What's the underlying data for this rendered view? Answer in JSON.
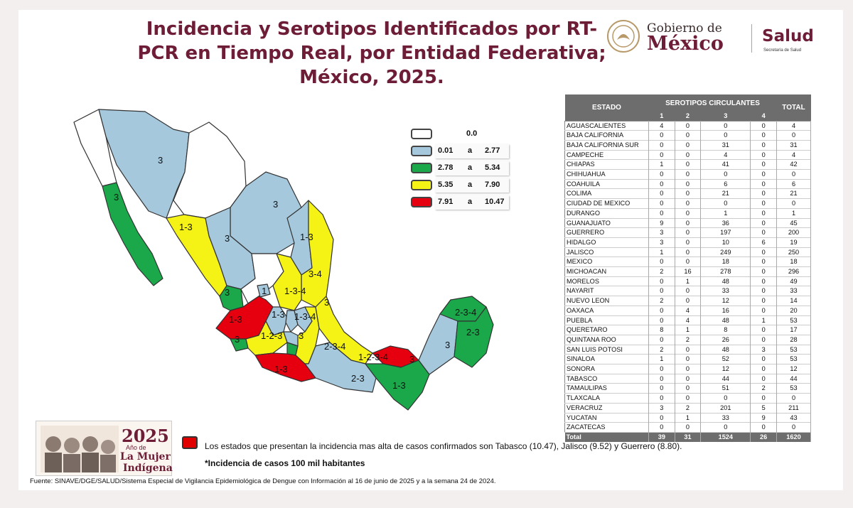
{
  "title": "Incidencia y Serotipos Identificados por RT-PCR en Tiempo Real, por Entidad Federativa; México, 2025.",
  "logo": {
    "gobierno": "Gobierno de",
    "mexico": "México",
    "salud": "Salud",
    "secretaria": "Secretaría de Salud"
  },
  "colors": {
    "white": "#ffffff",
    "blue": "#a5c8dc",
    "green": "#1aa84a",
    "yellow": "#f5f216",
    "red": "#e6000f",
    "brand": "#6e1d37"
  },
  "legend": [
    {
      "min": "",
      "a": "",
      "max": "0.0",
      "color": "#ffffff"
    },
    {
      "min": "0.01",
      "a": "a",
      "max": "2.77",
      "color": "#a5c8dc"
    },
    {
      "min": "2.78",
      "a": "a",
      "max": "5.34",
      "color": "#1aa84a"
    },
    {
      "min": "5.35",
      "a": "a",
      "max": "7.90",
      "color": "#f5f216"
    },
    {
      "min": "7.91",
      "a": "a",
      "max": "10.47",
      "color": "#e6000f"
    }
  ],
  "map_labels": [
    "3",
    "3",
    "1-3",
    "3",
    "3",
    "1-3",
    "3-4",
    "1-3-4",
    "3",
    "1",
    "1-3",
    "1-3",
    "1-3-4",
    "1-2-3",
    "3",
    "3",
    "2-3",
    "1-3",
    "2-3-4",
    "1-2-3-4",
    "3",
    "1-3",
    "2-3-4",
    "2-3",
    "3",
    "3"
  ],
  "table": {
    "header_estado": "ESTADO",
    "header_serotipos": "SEROTIPOS CIRCULANTES",
    "header_total": "TOTAL",
    "serotipos": [
      "1",
      "2",
      "3",
      "4"
    ],
    "rows": [
      [
        "AGUASCALIENTES",
        "4",
        "0",
        "0",
        "0",
        "4"
      ],
      [
        "BAJA CALIFORNIA",
        "0",
        "0",
        "0",
        "0",
        "0"
      ],
      [
        "BAJA CALIFORNIA SUR",
        "0",
        "0",
        "31",
        "0",
        "31"
      ],
      [
        "CAMPECHE",
        "0",
        "0",
        "4",
        "0",
        "4"
      ],
      [
        "CHIAPAS",
        "1",
        "0",
        "41",
        "0",
        "42"
      ],
      [
        "CHIHUAHUA",
        "0",
        "0",
        "0",
        "0",
        "0"
      ],
      [
        "COAHUILA",
        "0",
        "0",
        "6",
        "0",
        "6"
      ],
      [
        "COLIMA",
        "0",
        "0",
        "21",
        "0",
        "21"
      ],
      [
        "CIUDAD DE MEXICO",
        "0",
        "0",
        "0",
        "0",
        "0"
      ],
      [
        "DURANGO",
        "0",
        "0",
        "1",
        "0",
        "1"
      ],
      [
        "GUANAJUATO",
        "9",
        "0",
        "36",
        "0",
        "45"
      ],
      [
        "GUERRERO",
        "3",
        "0",
        "197",
        "0",
        "200"
      ],
      [
        "HIDALGO",
        "3",
        "0",
        "10",
        "6",
        "19"
      ],
      [
        "JALISCO",
        "1",
        "0",
        "249",
        "0",
        "250"
      ],
      [
        "MEXICO",
        "0",
        "0",
        "18",
        "0",
        "18"
      ],
      [
        "MICHOACAN",
        "2",
        "16",
        "278",
        "0",
        "296"
      ],
      [
        "MORELOS",
        "0",
        "1",
        "48",
        "0",
        "49"
      ],
      [
        "NAYARIT",
        "0",
        "0",
        "33",
        "0",
        "33"
      ],
      [
        "NUEVO LEON",
        "2",
        "0",
        "12",
        "0",
        "14"
      ],
      [
        "OAXACA",
        "0",
        "4",
        "16",
        "0",
        "20"
      ],
      [
        "PUEBLA",
        "0",
        "4",
        "48",
        "1",
        "53"
      ],
      [
        "QUERETARO",
        "8",
        "1",
        "8",
        "0",
        "17"
      ],
      [
        "QUINTANA ROO",
        "0",
        "2",
        "26",
        "0",
        "28"
      ],
      [
        "SAN LUIS POTOSI",
        "2",
        "0",
        "48",
        "3",
        "53"
      ],
      [
        "SINALOA",
        "1",
        "0",
        "52",
        "0",
        "53"
      ],
      [
        "SONORA",
        "0",
        "0",
        "12",
        "0",
        "12"
      ],
      [
        "TABASCO",
        "0",
        "0",
        "44",
        "0",
        "44"
      ],
      [
        "TAMAULIPAS",
        "0",
        "0",
        "51",
        "2",
        "53"
      ],
      [
        "TLAXCALA",
        "0",
        "0",
        "0",
        "0",
        "0"
      ],
      [
        "VERACRUZ",
        "3",
        "2",
        "201",
        "5",
        "211"
      ],
      [
        "YUCATAN",
        "0",
        "1",
        "33",
        "9",
        "43"
      ],
      [
        "ZACATECAS",
        "0",
        "0",
        "0",
        "0",
        "0"
      ]
    ],
    "total": [
      "Total",
      "39",
      "31",
      "1524",
      "26",
      "1620"
    ]
  },
  "badge": {
    "year": "2025",
    "subtitle": "Año de",
    "line1": "La Mujer",
    "line2": "Indígena"
  },
  "note": "Los estados que presentan la incidencia mas alta de casos confirmados son Tabasco (10.47), Jalisco (9.52) y Guerrero (8.80).",
  "note2": "*Incidencia de casos 100 mil habitantes",
  "source": "Fuente: SINAVE/DGE/SALUD/Sistema Especial de Vigilancia Epidemiológica de Dengue con Información al 16 de junio de 2025 y a la semana 24 de 2024."
}
